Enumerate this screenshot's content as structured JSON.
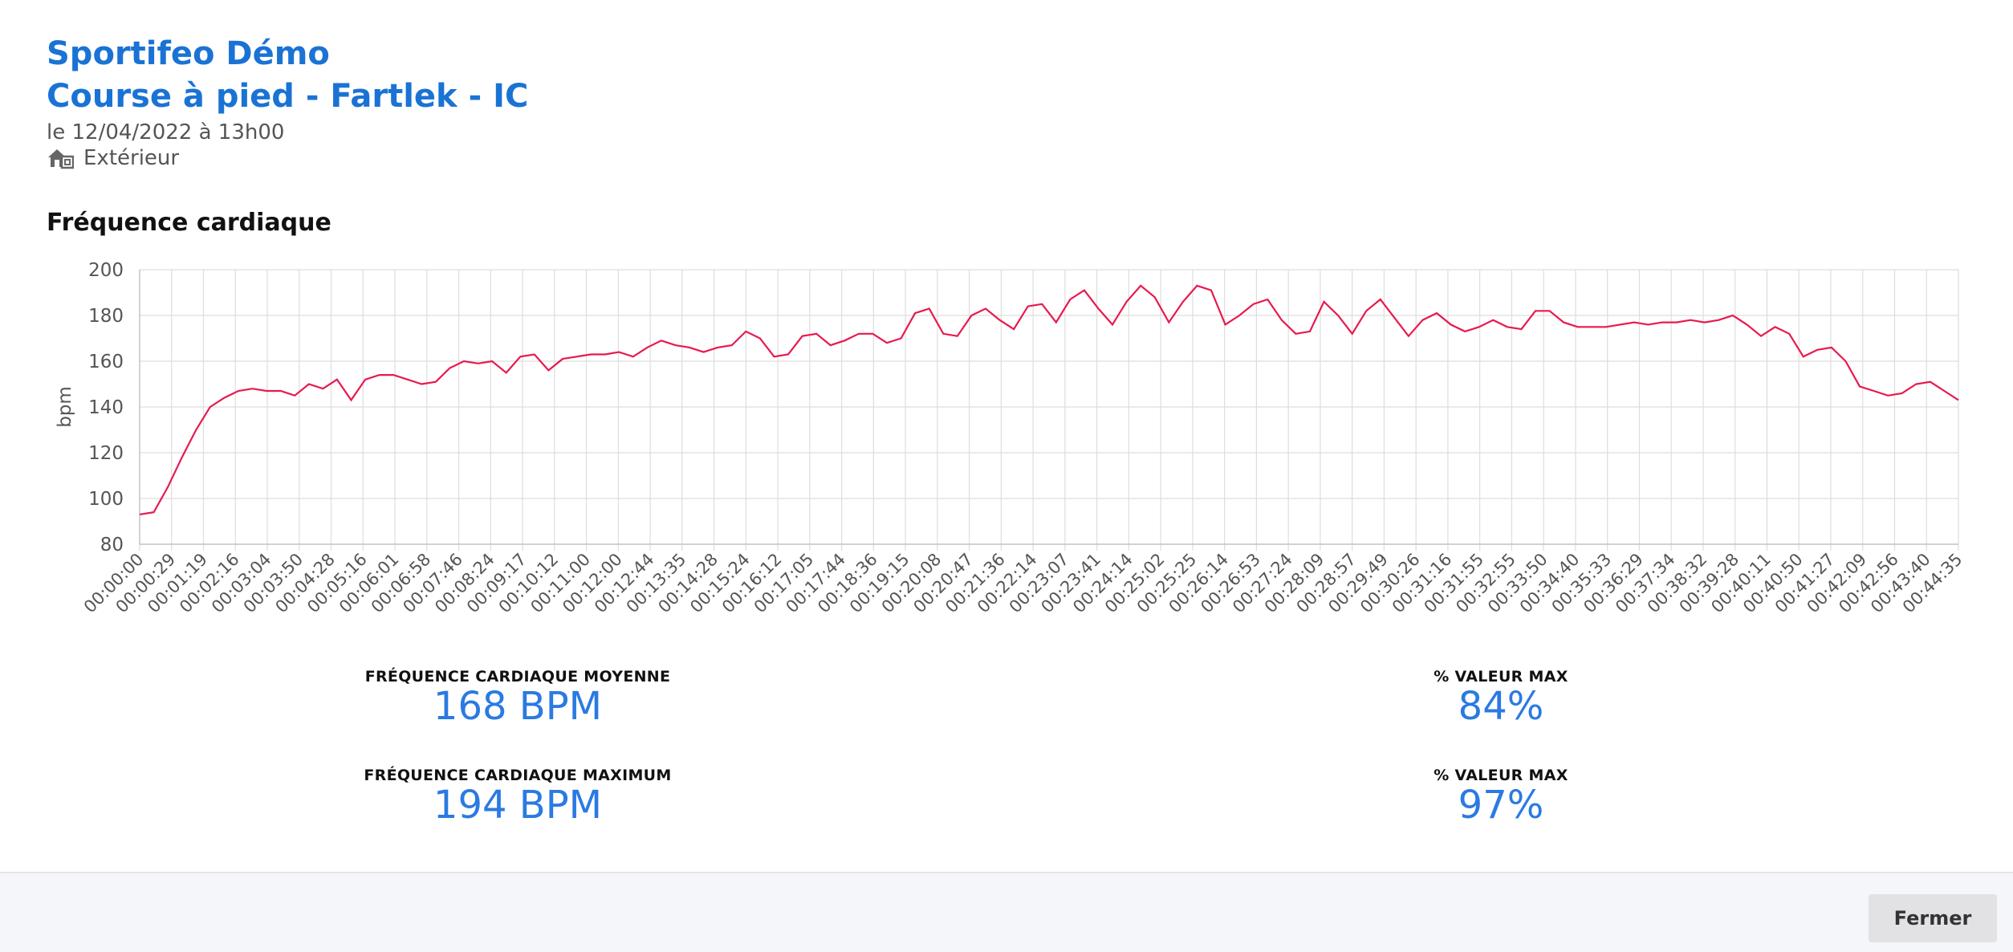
{
  "header": {
    "app_title": "Sportifeo Démo",
    "session_title": "Course à pied - Fartlek - IC",
    "date": "le 12/04/2022 à 13h00",
    "location": "Extérieur",
    "location_icon": "house-outdoor-icon"
  },
  "section": {
    "title": "Fréquence cardiaque"
  },
  "chart_data": {
    "type": "line",
    "ylabel": "bpm",
    "xlabel": "",
    "ylim": [
      80,
      200
    ],
    "yticks": [
      80,
      100,
      120,
      140,
      160,
      180,
      200
    ],
    "grid": true,
    "line_color": "#e8194d",
    "x_tick_labels": [
      "00:00:00",
      "00:00:29",
      "00:01:19",
      "00:02:16",
      "00:03:04",
      "00:03:50",
      "00:04:28",
      "00:05:16",
      "00:06:01",
      "00:06:58",
      "00:07:46",
      "00:08:24",
      "00:09:17",
      "00:10:12",
      "00:11:00",
      "00:12:00",
      "00:12:44",
      "00:13:35",
      "00:14:28",
      "00:15:24",
      "00:16:12",
      "00:17:05",
      "00:17:44",
      "00:18:36",
      "00:19:15",
      "00:20:08",
      "00:20:47",
      "00:21:36",
      "00:22:14",
      "00:23:07",
      "00:23:41",
      "00:24:14",
      "00:25:02",
      "00:25:25",
      "00:26:14",
      "00:26:53",
      "00:27:24",
      "00:28:09",
      "00:28:57",
      "00:29:49",
      "00:30:26",
      "00:31:16",
      "00:31:55",
      "00:32:55",
      "00:33:50",
      "00:34:40",
      "00:35:33",
      "00:36:29",
      "00:37:34",
      "00:38:32",
      "00:39:28",
      "00:40:11",
      "00:40:50",
      "00:41:27",
      "00:42:09",
      "00:42:56",
      "00:43:40",
      "00:44:35"
    ],
    "series": [
      {
        "values": [
          93,
          94,
          105,
          118,
          130,
          140,
          144,
          147,
          148,
          147,
          147,
          145,
          150,
          148,
          152,
          143,
          152,
          154,
          154,
          152,
          150,
          151,
          157,
          160,
          159,
          160,
          155,
          162,
          163,
          156,
          161,
          162,
          163,
          163,
          164,
          162,
          166,
          169,
          167,
          166,
          164,
          166,
          167,
          173,
          170,
          162,
          163,
          171,
          172,
          167,
          169,
          172,
          172,
          168,
          170,
          181,
          183,
          172,
          171,
          180,
          183,
          178,
          174,
          184,
          185,
          177,
          187,
          191,
          183,
          176,
          186,
          193,
          188,
          177,
          186,
          193,
          191,
          176,
          180,
          185,
          187,
          178,
          172,
          173,
          186,
          180,
          172,
          182,
          187,
          179,
          171,
          178,
          181,
          176,
          173,
          175,
          178,
          175,
          174,
          182,
          182,
          177,
          175,
          175,
          175,
          176,
          177,
          176,
          177,
          177,
          178,
          177,
          178,
          180,
          176,
          171,
          175,
          172,
          162,
          165,
          166,
          160,
          149,
          147,
          145,
          146,
          150,
          151,
          147,
          143
        ]
      }
    ]
  },
  "stats": [
    {
      "label": "FRÉQUENCE CARDIAQUE MOYENNE",
      "value": "168 BPM"
    },
    {
      "label": "% VALEUR MAX",
      "value": "84%"
    },
    {
      "label": "FRÉQUENCE CARDIAQUE MAXIMUM",
      "value": "194 BPM"
    },
    {
      "label": "% VALEUR MAX",
      "value": "97%"
    }
  ],
  "footer": {
    "close_label": "Fermer"
  }
}
